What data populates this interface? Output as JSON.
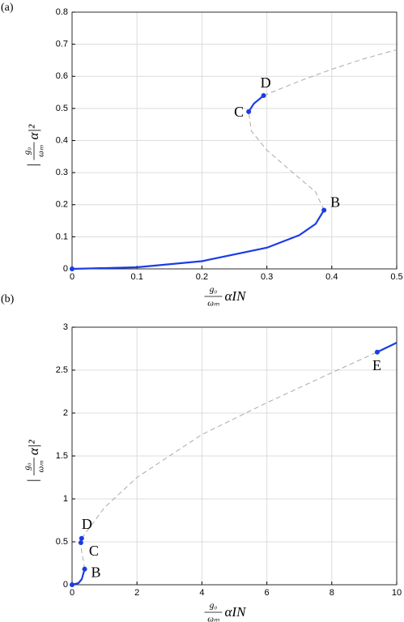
{
  "chart_data": [
    {
      "type": "line",
      "panel": "(a)",
      "xlabel_num": "g₀",
      "xlabel_den": "ωₘ",
      "xlabel_rest": "αIN",
      "ylabel_open": "|",
      "ylabel_num": "g₀",
      "ylabel_den": "ωₘ",
      "ylabel_rest": "α|²",
      "xlim": [
        0,
        0.5
      ],
      "ylim": [
        0,
        0.8
      ],
      "xticks": [
        0,
        0.1,
        0.2,
        0.3,
        0.4,
        0.5
      ],
      "yticks": [
        0,
        0.1,
        0.2,
        0.3,
        0.4,
        0.5,
        0.6,
        0.7,
        0.8
      ],
      "grid": true,
      "series": [
        {
          "color": "#1a3ce6",
          "dashed": false,
          "x": [
            0,
            0.1,
            0.2,
            0.3,
            0.35,
            0.375,
            0.388
          ],
          "values": [
            0,
            0.005,
            0.024,
            0.066,
            0.105,
            0.14,
            0.183
          ]
        },
        {
          "color": "#aaaaaa",
          "dashed": true,
          "x": [
            0.388,
            0.375,
            0.34,
            0.3,
            0.276,
            0.272
          ],
          "values": [
            0.183,
            0.24,
            0.3,
            0.37,
            0.43,
            0.49
          ]
        },
        {
          "color": "#1a3ce6",
          "dashed": false,
          "x": [
            0.272,
            0.28,
            0.295
          ],
          "values": [
            0.49,
            0.515,
            0.54
          ]
        },
        {
          "color": "#aaaaaa",
          "dashed": true,
          "x": [
            0.295,
            0.35,
            0.4,
            0.45,
            0.5
          ],
          "values": [
            0.54,
            0.585,
            0.622,
            0.655,
            0.683
          ]
        }
      ],
      "points": [
        {
          "label": null,
          "x": 0,
          "y": 0
        },
        {
          "label": "B",
          "x": 0.388,
          "y": 0.183
        },
        {
          "label": "C",
          "x": 0.272,
          "y": 0.49
        },
        {
          "label": "D",
          "x": 0.295,
          "y": 0.54
        }
      ]
    },
    {
      "type": "line",
      "panel": "(b)",
      "xlabel_num": "g₀",
      "xlabel_den": "ωₘ",
      "xlabel_rest": "αIN",
      "ylabel_open": "|",
      "ylabel_num": "g₀",
      "ylabel_den": "ωₘ",
      "ylabel_rest": "α|²",
      "xlim": [
        0,
        10
      ],
      "ylim": [
        0,
        3
      ],
      "xticks": [
        0,
        2,
        4,
        6,
        8,
        10
      ],
      "yticks": [
        0,
        0.5,
        1,
        1.5,
        2,
        2.5,
        3
      ],
      "grid": true,
      "series": [
        {
          "color": "#1a3ce6",
          "dashed": false,
          "x": [
            0,
            0.2,
            0.3,
            0.388
          ],
          "values": [
            0,
            0.02,
            0.066,
            0.183
          ]
        },
        {
          "color": "#aaaaaa",
          "dashed": true,
          "x": [
            0.388,
            0.34,
            0.3,
            0.272
          ],
          "values": [
            0.183,
            0.3,
            0.37,
            0.49
          ]
        },
        {
          "color": "#1a3ce6",
          "dashed": false,
          "x": [
            0.272,
            0.295
          ],
          "values": [
            0.49,
            0.54
          ]
        },
        {
          "color": "#aaaaaa",
          "dashed": true,
          "x": [
            0.295,
            1,
            2,
            4,
            6,
            8,
            9.4
          ],
          "values": [
            0.54,
            0.9,
            1.25,
            1.75,
            2.12,
            2.47,
            2.71
          ]
        },
        {
          "color": "#1a3ce6",
          "dashed": false,
          "x": [
            9.4,
            10
          ],
          "values": [
            2.71,
            2.82
          ]
        }
      ],
      "points": [
        {
          "label": null,
          "x": 0,
          "y": 0
        },
        {
          "label": "B",
          "x": 0.388,
          "y": 0.183
        },
        {
          "label": "C",
          "x": 0.272,
          "y": 0.49
        },
        {
          "label": "D",
          "x": 0.295,
          "y": 0.54
        },
        {
          "label": "E",
          "x": 9.4,
          "y": 2.71
        }
      ]
    }
  ]
}
